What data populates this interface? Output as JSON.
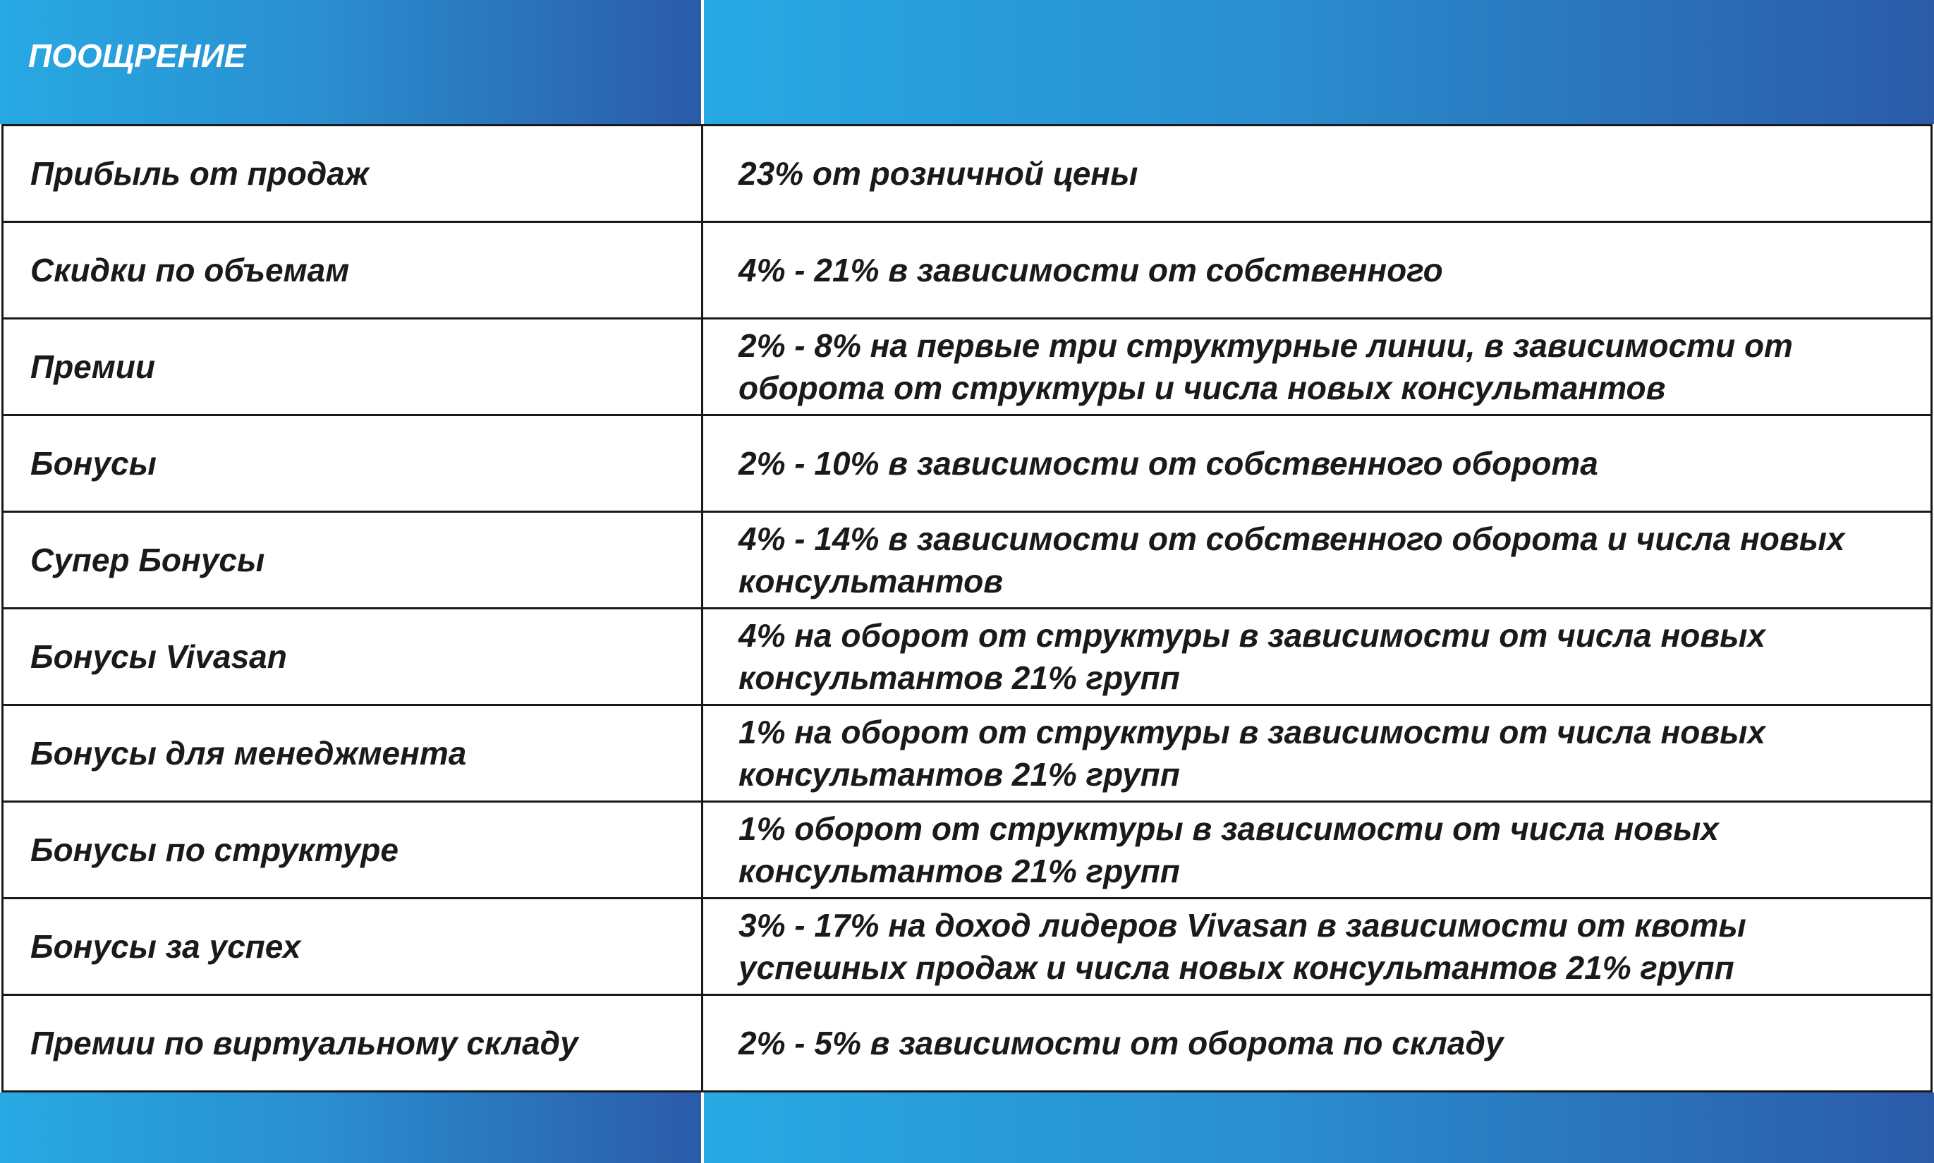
{
  "header": {
    "title": "ПООЩРЕНИЕ"
  },
  "colors": {
    "gradient_start": "#27a9e3",
    "gradient_end": "#2b5ba8",
    "text": "#1a1a1a"
  },
  "rows": [
    {
      "label": "Прибыль от продаж",
      "value": "23% от розничной цены"
    },
    {
      "label": "Скидки по объемам",
      "value": "4% - 21% в зависимости от собственного"
    },
    {
      "label": "Премии",
      "value": "2% - 8% на первые три структурные линии, в зависимости от оборота от структуры и числа новых консультантов"
    },
    {
      "label": "Бонусы",
      "value": "2% - 10% в зависимости от собственного оборота"
    },
    {
      "label": "Супер Бонусы",
      "value": "4% - 14% в зависимости от собственного оборота и числа новых консультантов"
    },
    {
      "label": "Бонусы Vivasan",
      "value": "4% на оборот от структуры в зависимости от числа новых консультантов 21% групп"
    },
    {
      "label": "Бонусы для менеджмента",
      "value": "1% на оборот от структуры в зависимости от числа новых консультантов 21% групп"
    },
    {
      "label": "Бонусы по структуре",
      "value": "1% оборот от структуры в зависимости от числа новых консультантов 21% групп"
    },
    {
      "label": "Бонусы за успех",
      "value": "3% - 17% на доход лидеров Vivasan в зависимости от квоты успешных продаж и числа новых консультантов 21% групп"
    },
    {
      "label": "Премии по виртуальному складу",
      "value": "2% - 5% в зависимости от оборота по складу"
    }
  ]
}
